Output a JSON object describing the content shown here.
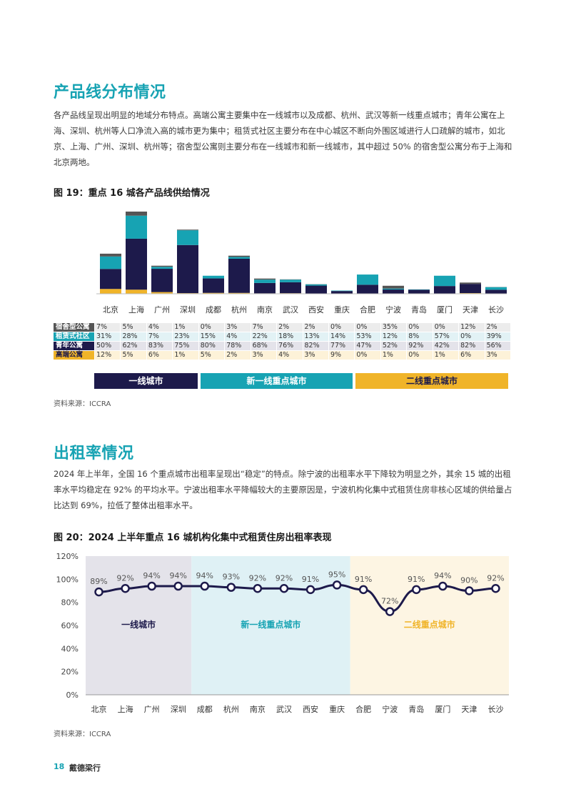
{
  "section1": {
    "title": "产品线分布情况",
    "paragraph": "各产品线呈现出明显的地域分布特点。高端公寓主要集中在一线城市以及成都、杭州、武汉等新一线重点城市；青年公寓在上海、深圳、杭州等人口净流入高的城市更为集中；租赁式社区主要分布在中心城区不断向外围区域进行人口疏解的城市，如北京、上海、广州、深圳、杭州等；宿舍型公寓则主要分布在一线城市和新一线城市，其中超过 50% 的宿舍型公寓分布于上海和北京两地。"
  },
  "figure19": {
    "title": "图 19：重点 16 城各产品线供给情况",
    "source": "资料来源：ICCRA"
  },
  "chart_data": [
    {
      "type": "bar",
      "stacked": true,
      "categories": [
        "北京",
        "上海",
        "广州",
        "深圳",
        "成都",
        "杭州",
        "南京",
        "武汉",
        "西安",
        "重庆",
        "合肥",
        "宁波",
        "青岛",
        "厦门",
        "天津",
        "长沙"
      ],
      "series": [
        {
          "name": "高端公寓",
          "color": "#f0b429",
          "values": [
            12,
            5,
            6,
            1,
            5,
            2,
            3,
            4,
            3,
            9,
            0,
            1,
            0,
            1,
            6,
            3
          ],
          "labels": [
            "12%",
            "5%",
            "6%",
            "1%",
            "5%",
            "2%",
            "3%",
            "4%",
            "3%",
            "9%",
            "0%",
            "1%",
            "0%",
            "1%",
            "6%",
            "3%"
          ]
        },
        {
          "name": "青年公寓",
          "color": "#1d1a4b",
          "values": [
            50,
            62,
            83,
            75,
            80,
            78,
            68,
            76,
            82,
            77,
            47,
            52,
            92,
            42,
            82,
            56
          ],
          "labels": [
            "50%",
            "62%",
            "83%",
            "75%",
            "80%",
            "78%",
            "68%",
            "76%",
            "82%",
            "77%",
            "47%",
            "52%",
            "92%",
            "42%",
            "82%",
            "56%"
          ]
        },
        {
          "name": "租赁式社区",
          "color": "#17a3b3",
          "values": [
            31,
            28,
            7,
            23,
            15,
            4,
            22,
            18,
            13,
            14,
            53,
            12,
            8,
            57,
            0,
            39
          ],
          "labels": [
            "31%",
            "28%",
            "7%",
            "23%",
            "15%",
            "4%",
            "22%",
            "18%",
            "13%",
            "14%",
            "53%",
            "12%",
            "8%",
            "57%",
            "0%",
            "39%"
          ]
        },
        {
          "name": "宿舍型公寓",
          "color": "#555555",
          "values": [
            7,
            5,
            4,
            1,
            0,
            3,
            7,
            2,
            2,
            0,
            0,
            35,
            0,
            0,
            12,
            2
          ],
          "labels": [
            "7%",
            "5%",
            "4%",
            "1%",
            "0%",
            "3%",
            "7%",
            "2%",
            "2%",
            "0%",
            "0%",
            "35%",
            "0%",
            "0%",
            "12%",
            "2%"
          ]
        }
      ],
      "totals_relative": [
        1.0,
        2.05,
        0.7,
        1.6,
        0.45,
        0.95,
        0.38,
        0.36,
        0.24,
        0.08,
        0.48,
        0.2,
        0.11,
        0.45,
        0.28,
        0.17
      ]
    },
    {
      "type": "line",
      "categories": [
        "北京",
        "上海",
        "广州",
        "深圳",
        "成都",
        "杭州",
        "南京",
        "武汉",
        "西安",
        "重庆",
        "合肥",
        "宁波",
        "青岛",
        "厦门",
        "天津",
        "长沙"
      ],
      "series": [
        {
          "name": "出租率",
          "color": "#1d1a4b",
          "values": [
            89,
            92,
            94,
            94,
            94,
            93,
            92,
            92,
            91,
            95,
            91,
            72,
            91,
            94,
            90,
            92
          ]
        }
      ],
      "value_labels": [
        "89%",
        "92%",
        "94%",
        "94%",
        "94%",
        "93%",
        "92%",
        "92%",
        "91%",
        "95%",
        "91%",
        "72%",
        "91%",
        "94%",
        "90%",
        "92%"
      ],
      "y_ticks": [
        "120%",
        "100%",
        "80%",
        "60%",
        "40%",
        "20%",
        "0%"
      ],
      "ylim": [
        0,
        120
      ],
      "regions": [
        {
          "label": "一线城市",
          "from": 0,
          "to": 3,
          "fill": "#e4e3ea",
          "text_color": "#1d1a4b"
        },
        {
          "label": "新一线重点城市",
          "from": 4,
          "to": 9,
          "fill": "#dff1f5",
          "text_color": "#17a3b3"
        },
        {
          "label": "二线重点城市",
          "from": 10,
          "to": 15,
          "fill": "#fdf5e3",
          "text_color": "#f0b429"
        }
      ]
    }
  ],
  "legend19": [
    {
      "label": "一线城市",
      "color": "#1d1a4b"
    },
    {
      "label": "新一线重点城市",
      "color": "#17a3b3"
    },
    {
      "label": "二线重点城市",
      "color": "#f0b429"
    }
  ],
  "section2": {
    "title": "出租率情况",
    "paragraph": "2024 年上半年，全国 16 个重点城市出租率呈现出“稳定”的特点。除宁波的出租率水平下降较为明显之外，其余 15 城的出租率水平均稳定在 92% 的平均水平。宁波出租率水平降幅较大的主要原因是，宁波机构化集中式租赁住房非核心区域的供给量占比达到 69%，拉低了整体出租率水平。"
  },
  "figure20": {
    "title": "图 20：2024 上半年重点 16 城机构化集中式租赁住房出租率表现",
    "source": "资料来源：ICCRA"
  },
  "footer": {
    "page": "18",
    "company": "戴德梁行"
  }
}
